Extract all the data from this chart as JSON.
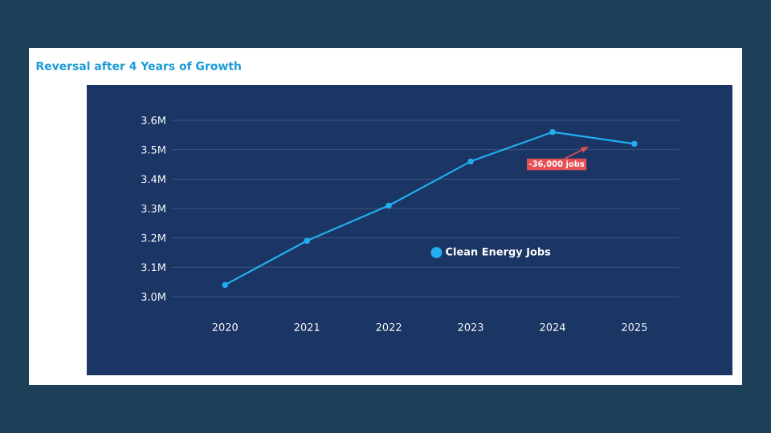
{
  "chart_data": {
    "type": "line",
    "title": "Reversal after 4 Years of Growth",
    "categories": [
      "2020",
      "2021",
      "2022",
      "2023",
      "2024",
      "2025"
    ],
    "series": [
      {
        "name": "Clean Energy Jobs",
        "color": "#22aef0",
        "values": [
          3.04,
          3.19,
          3.31,
          3.46,
          3.56,
          3.52
        ]
      }
    ],
    "ylim": [
      3.0,
      3.6
    ],
    "yticks": [
      {
        "value": 3.0,
        "label": "3.0M"
      },
      {
        "value": 3.1,
        "label": "3.1M"
      },
      {
        "value": 3.2,
        "label": "3.2M"
      },
      {
        "value": 3.3,
        "label": "3.3M"
      },
      {
        "value": 3.4,
        "label": "3.4M"
      },
      {
        "value": 3.5,
        "label": "3.5M"
      },
      {
        "value": 3.6,
        "label": "3.6M"
      }
    ],
    "annotations": [
      "-36,000 jobs"
    ],
    "grid": "y",
    "legend": "bottom right",
    "marker": "circle",
    "line_style": "solid"
  }
}
